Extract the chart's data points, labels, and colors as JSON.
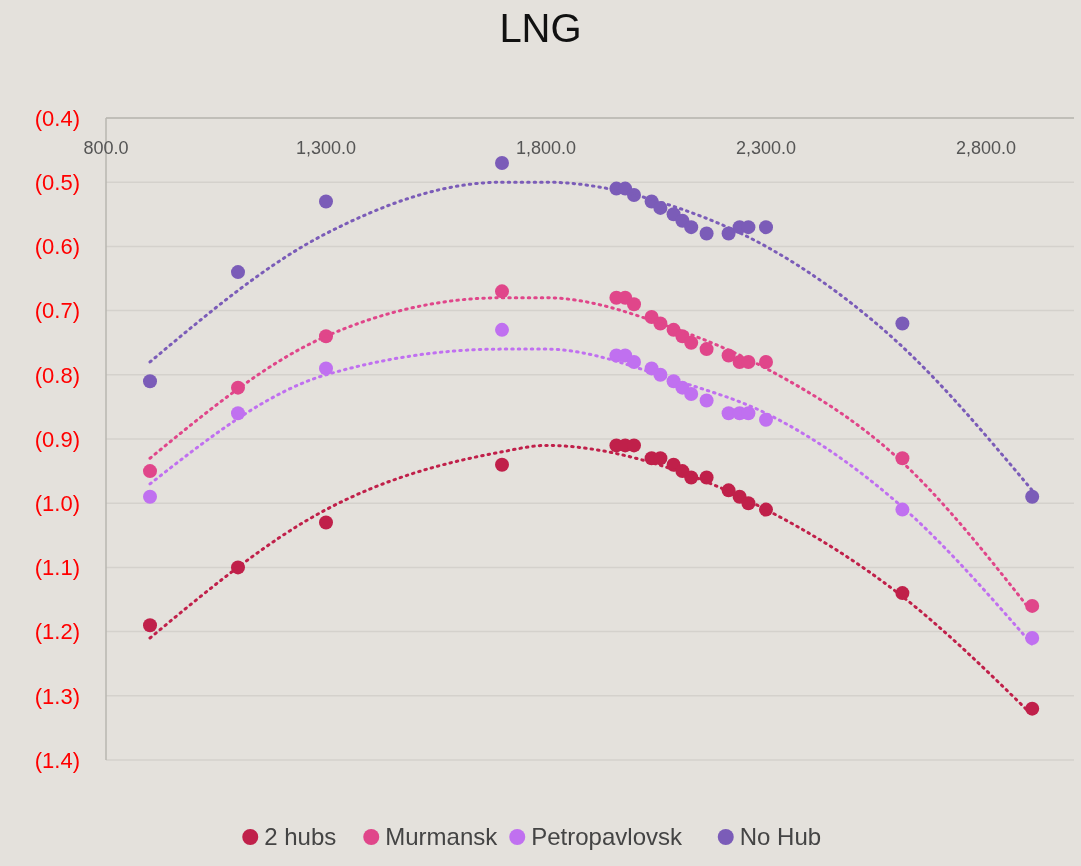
{
  "chart_data": {
    "type": "scatter",
    "title": "LNG",
    "x": [
      900,
      1100,
      1300,
      1700,
      1960,
      1980,
      2000,
      2040,
      2060,
      2090,
      2110,
      2130,
      2165,
      2215,
      2240,
      2260,
      2300,
      2610,
      2905
    ],
    "xlim": [
      800,
      3000
    ],
    "xticks": [
      {
        "value": 800,
        "label": "800.0"
      },
      {
        "value": 1300,
        "label": "1,300.0"
      },
      {
        "value": 1800,
        "label": "1,800.0"
      },
      {
        "value": 2300,
        "label": "2,300.0"
      },
      {
        "value": 2800,
        "label": "2,800.0"
      }
    ],
    "ylim": [
      -1.4,
      -0.4
    ],
    "yticks": [
      {
        "value": -0.4,
        "label": "(0.4)"
      },
      {
        "value": -0.5,
        "label": "(0.5)"
      },
      {
        "value": -0.6,
        "label": "(0.6)"
      },
      {
        "value": -0.7,
        "label": "(0.7)"
      },
      {
        "value": -0.8,
        "label": "(0.8)"
      },
      {
        "value": -0.9,
        "label": "(0.9)"
      },
      {
        "value": -1.0,
        "label": "(1.0)"
      },
      {
        "value": -1.1,
        "label": "(1.1)"
      },
      {
        "value": -1.2,
        "label": "(1.2)"
      },
      {
        "value": -1.3,
        "label": "(1.3)"
      },
      {
        "value": -1.4,
        "label": "(1.4)"
      }
    ],
    "grid": "y",
    "legend": "bottom",
    "marker": "circle",
    "series": [
      {
        "name": "2 hubs",
        "color": "#c0204a",
        "values": [
          -1.19,
          -1.1,
          -1.03,
          -0.94,
          -0.91,
          -0.91,
          -0.91,
          -0.93,
          -0.93,
          -0.94,
          -0.95,
          -0.96,
          -0.96,
          -0.98,
          -0.99,
          -1.0,
          -1.01,
          -1.14,
          -1.32
        ]
      },
      {
        "name": "Murmansk",
        "color": "#e0468a",
        "values": [
          -0.95,
          -0.82,
          -0.74,
          -0.67,
          -0.68,
          -0.68,
          -0.69,
          -0.71,
          -0.72,
          -0.73,
          -0.74,
          -0.75,
          -0.76,
          -0.77,
          -0.78,
          -0.78,
          -0.78,
          -0.93,
          -1.16
        ]
      },
      {
        "name": "Petropavlovsk",
        "color": "#c070f0",
        "values": [
          -0.99,
          -0.86,
          -0.79,
          -0.73,
          -0.77,
          -0.77,
          -0.78,
          -0.79,
          -0.8,
          -0.81,
          -0.82,
          -0.83,
          -0.84,
          -0.86,
          -0.86,
          -0.86,
          -0.87,
          -1.01,
          -1.21
        ]
      },
      {
        "name": "No Hub",
        "color": "#7b5cb8",
        "values": [
          -0.81,
          -0.64,
          -0.53,
          -0.47,
          -0.51,
          -0.51,
          -0.52,
          -0.53,
          -0.54,
          -0.55,
          -0.56,
          -0.57,
          -0.58,
          -0.58,
          -0.57,
          -0.57,
          -0.57,
          -0.72,
          -0.99
        ]
      },
      {
        "type": "line",
        "line_style": "dotted",
        "marker": "none",
        "color": "#c0204a",
        "x": [
          900,
          1300,
          1700,
          1800,
          2100,
          2300,
          2600,
          2905
        ],
        "values": [
          -1.21,
          -1.01,
          -0.92,
          -0.91,
          -0.95,
          -1.01,
          -1.14,
          -1.33
        ]
      },
      {
        "type": "line",
        "line_style": "dotted",
        "marker": "none",
        "color": "#e0468a",
        "x": [
          900,
          1300,
          1700,
          1800,
          2100,
          2300,
          2600,
          2905
        ],
        "values": [
          -0.93,
          -0.74,
          -0.68,
          -0.68,
          -0.73,
          -0.79,
          -0.93,
          -1.17
        ]
      },
      {
        "type": "line",
        "line_style": "dotted",
        "marker": "none",
        "color": "#c070f0",
        "x": [
          900,
          1300,
          1700,
          1800,
          2100,
          2300,
          2600,
          2905
        ],
        "values": [
          -0.97,
          -0.8,
          -0.76,
          -0.76,
          -0.81,
          -0.86,
          -1.0,
          -1.22
        ]
      },
      {
        "type": "line",
        "line_style": "dotted",
        "marker": "none",
        "color": "#7b5cb8",
        "x": [
          900,
          1300,
          1700,
          1800,
          2100,
          2300,
          2600,
          2905
        ],
        "values": [
          -0.78,
          -0.58,
          -0.5,
          -0.5,
          -0.54,
          -0.6,
          -0.75,
          -0.98
        ]
      }
    ]
  }
}
